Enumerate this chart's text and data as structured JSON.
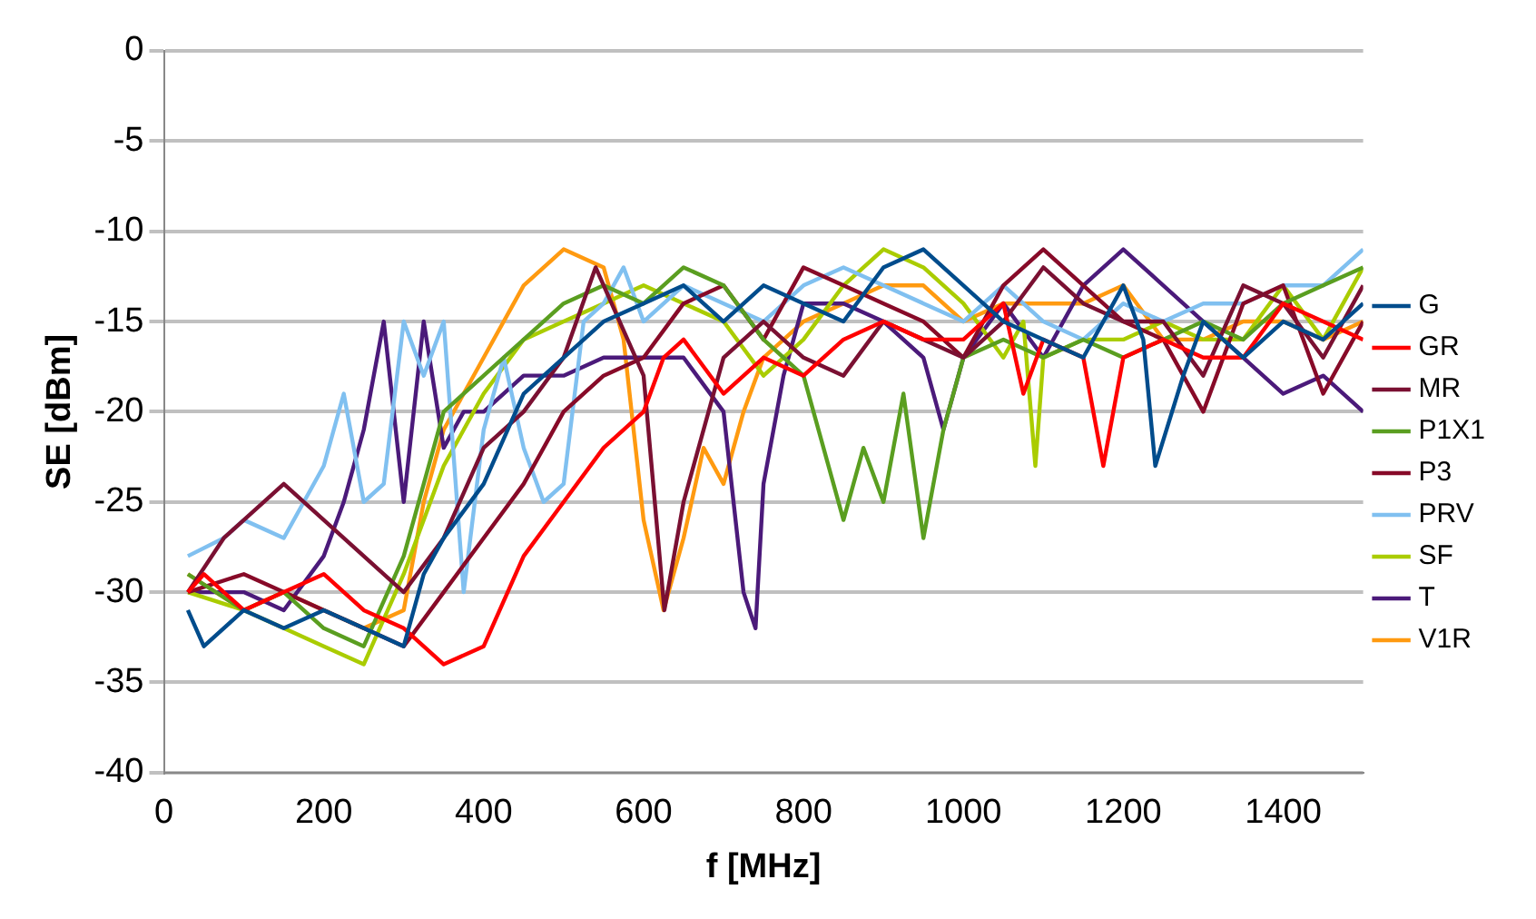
{
  "chart_data": {
    "type": "line",
    "xlabel": "f [MHz]",
    "ylabel": "SE [dBm]",
    "xlim": [
      0,
      1500
    ],
    "xticks": [
      0,
      200,
      400,
      600,
      800,
      1000,
      1200,
      1400
    ],
    "ylim": [
      -40,
      0
    ],
    "yticks": [
      -40,
      -35,
      -30,
      -25,
      -20,
      -15,
      -10,
      -5,
      0
    ],
    "grid": "y",
    "legend": "right",
    "marker": "none",
    "line_style": "solid",
    "series": [
      {
        "name": "G",
        "color": "#004c8c",
        "x": [
          30,
          50,
          100,
          150,
          200,
          250,
          300,
          325,
          350,
          400,
          450,
          500,
          550,
          600,
          650,
          700,
          750,
          800,
          850,
          900,
          950,
          1000,
          1050,
          1100,
          1150,
          1200,
          1225,
          1240,
          1275,
          1300,
          1350,
          1400,
          1450,
          1500
        ],
        "values": [
          -31,
          -33,
          -31,
          -32,
          -31,
          -32,
          -33,
          -29,
          -27,
          -24,
          -19,
          -17,
          -15,
          -14,
          -13,
          -15,
          -13,
          -14,
          -15,
          -12,
          -11,
          -13,
          -15,
          -16,
          -17,
          -13,
          -16,
          -23,
          -18,
          -15,
          -17,
          -15,
          -16,
          -14
        ]
      },
      {
        "name": "GR",
        "color": "#ff0000",
        "x": [
          30,
          50,
          100,
          150,
          200,
          250,
          300,
          350,
          400,
          450,
          500,
          550,
          600,
          625,
          650,
          700,
          750,
          800,
          850,
          900,
          950,
          1000,
          1050,
          1075,
          1100,
          1150,
          1175,
          1200,
          1250,
          1300,
          1350,
          1400,
          1450,
          1500
        ],
        "values": [
          -30,
          -29,
          -31,
          -30,
          -29,
          -31,
          -32,
          -34,
          -33,
          -28,
          -25,
          -22,
          -20,
          -17,
          -16,
          -19,
          -17,
          -18,
          -16,
          -15,
          -16,
          -16,
          -14,
          -19,
          -16,
          -17,
          -23,
          -17,
          -16,
          -17,
          -17,
          -14,
          -15,
          -16
        ]
      },
      {
        "name": "MR",
        "color": "#7a1032",
        "x": [
          30,
          75,
          100,
          150,
          200,
          250,
          300,
          350,
          400,
          450,
          500,
          540,
          600,
          626,
          650,
          700,
          750,
          800,
          850,
          900,
          950,
          1000,
          1050,
          1100,
          1150,
          1200,
          1250,
          1300,
          1350,
          1400,
          1450,
          1500
        ],
        "values": [
          -30,
          -27,
          -26,
          -24,
          -26,
          -28,
          -30,
          -27,
          -22,
          -20,
          -17,
          -12,
          -18,
          -31,
          -25,
          -17,
          -15,
          -17,
          -18,
          -15,
          -16,
          -17,
          -15,
          -12,
          -14,
          -15,
          -15,
          -18,
          -13,
          -14,
          -17,
          -13
        ]
      },
      {
        "name": "P1X1",
        "color": "#5a9e20",
        "x": [
          30,
          100,
          150,
          200,
          250,
          300,
          350,
          400,
          450,
          500,
          550,
          600,
          650,
          700,
          750,
          800,
          850,
          875,
          900,
          925,
          950,
          975,
          1000,
          1050,
          1100,
          1150,
          1200,
          1250,
          1300,
          1350,
          1400,
          1450,
          1500
        ],
        "values": [
          -29,
          -31,
          -30,
          -32,
          -33,
          -28,
          -20,
          -18,
          -16,
          -14,
          -13,
          -14,
          -12,
          -13,
          -16,
          -18,
          -26,
          -22,
          -25,
          -19,
          -27,
          -21,
          -17,
          -16,
          -17,
          -16,
          -17,
          -16,
          -15,
          -16,
          -14,
          -13,
          -12
        ]
      },
      {
        "name": "P3",
        "color": "#870a28",
        "x": [
          30,
          100,
          150,
          200,
          250,
          300,
          350,
          400,
          450,
          500,
          550,
          600,
          650,
          700,
          750,
          800,
          850,
          900,
          950,
          1000,
          1050,
          1100,
          1150,
          1200,
          1250,
          1300,
          1350,
          1400,
          1450,
          1500
        ],
        "values": [
          -30,
          -29,
          -30,
          -31,
          -32,
          -33,
          -30,
          -27,
          -24,
          -20,
          -18,
          -17,
          -14,
          -13,
          -16,
          -12,
          -13,
          -14,
          -15,
          -17,
          -13,
          -11,
          -13,
          -15,
          -16,
          -20,
          -14,
          -13,
          -19,
          -15
        ]
      },
      {
        "name": "PRV",
        "color": "#80c0f0",
        "x": [
          30,
          75,
          100,
          150,
          200,
          225,
          250,
          275,
          300,
          325,
          350,
          375,
          400,
          425,
          450,
          475,
          500,
          525,
          550,
          575,
          600,
          650,
          700,
          750,
          800,
          850,
          900,
          950,
          1000,
          1050,
          1100,
          1150,
          1200,
          1250,
          1300,
          1350,
          1400,
          1450,
          1500
        ],
        "values": [
          -28,
          -27,
          -26,
          -27,
          -23,
          -19,
          -25,
          -24,
          -15,
          -18,
          -15,
          -30,
          -21,
          -17,
          -22,
          -25,
          -24,
          -15,
          -14,
          -12,
          -15,
          -13,
          -14,
          -15,
          -13,
          -12,
          -13,
          -14,
          -15,
          -13,
          -15,
          -16,
          -14,
          -15,
          -14,
          -14,
          -13,
          -13,
          -11
        ]
      },
      {
        "name": "SF",
        "color": "#aacc00",
        "x": [
          30,
          100,
          150,
          200,
          250,
          300,
          350,
          400,
          450,
          500,
          550,
          600,
          650,
          700,
          750,
          800,
          850,
          900,
          950,
          1000,
          1050,
          1075,
          1090,
          1100,
          1150,
          1200,
          1250,
          1300,
          1350,
          1400,
          1450,
          1500
        ],
        "values": [
          -30,
          -31,
          -32,
          -33,
          -34,
          -29,
          -23,
          -19,
          -16,
          -15,
          -14,
          -13,
          -14,
          -15,
          -18,
          -16,
          -13,
          -11,
          -12,
          -14,
          -17,
          -15,
          -23,
          -17,
          -16,
          -16,
          -15,
          -16,
          -16,
          -13,
          -16,
          -12
        ]
      },
      {
        "name": "T",
        "color": "#4b1a7a",
        "x": [
          30,
          100,
          150,
          200,
          225,
          250,
          275,
          300,
          325,
          350,
          375,
          400,
          450,
          500,
          550,
          600,
          650,
          700,
          725,
          740,
          750,
          775,
          800,
          850,
          900,
          950,
          975,
          1000,
          1050,
          1100,
          1150,
          1200,
          1250,
          1300,
          1350,
          1400,
          1450,
          1500
        ],
        "values": [
          -30,
          -30,
          -31,
          -28,
          -25,
          -21,
          -15,
          -25,
          -15,
          -22,
          -20,
          -20,
          -18,
          -18,
          -17,
          -17,
          -17,
          -20,
          -30,
          -32,
          -24,
          -18,
          -14,
          -14,
          -15,
          -17,
          -21,
          -17,
          -14,
          -17,
          -13,
          -11,
          -13,
          -15,
          -17,
          -19,
          -18,
          -20
        ]
      },
      {
        "name": "V1R",
        "color": "#ff9a10",
        "x": [
          30,
          100,
          150,
          200,
          250,
          300,
          325,
          350,
          400,
          450,
          500,
          550,
          575,
          600,
          625,
          650,
          675,
          700,
          725,
          750,
          800,
          850,
          900,
          950,
          1000,
          1050,
          1100,
          1150,
          1200,
          1250,
          1300,
          1350,
          1400,
          1450,
          1500
        ],
        "values": [
          -29,
          -31,
          -30,
          -31,
          -32,
          -31,
          -25,
          -21,
          -17,
          -13,
          -11,
          -12,
          -16,
          -26,
          -31,
          -27,
          -22,
          -24,
          -20,
          -17,
          -15,
          -14,
          -13,
          -13,
          -15,
          -14,
          -14,
          -14,
          -13,
          -16,
          -16,
          -15,
          -15,
          -16,
          -15
        ]
      }
    ]
  }
}
